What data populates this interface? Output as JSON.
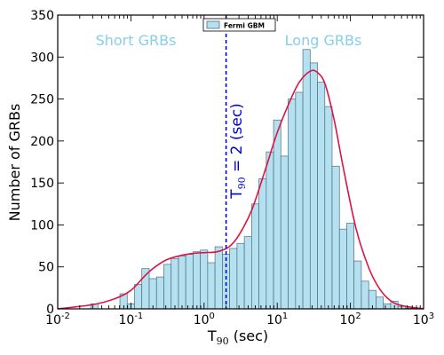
{
  "chart_data": {
    "type": "bar",
    "xscale": "log",
    "xlim": [
      0.01,
      1000
    ],
    "ylim": [
      0,
      350
    ],
    "xticks": [
      {
        "base": "10",
        "exp": "-2"
      },
      {
        "base": "10",
        "exp": "-1"
      },
      {
        "base": "10",
        "exp": "0"
      },
      {
        "base": "10",
        "exp": "1"
      },
      {
        "base": "10",
        "exp": "2"
      },
      {
        "base": "10",
        "exp": "3"
      }
    ],
    "yticks": [
      "0",
      "50",
      "100",
      "150",
      "200",
      "250",
      "300",
      "350"
    ],
    "ytick_values": [
      0,
      50,
      100,
      150,
      200,
      250,
      300,
      350
    ],
    "xlabel_main": "T",
    "xlabel_sub": "90",
    "xlabel_rest": " (sec)",
    "ylabel": "Number of GRBs",
    "legend": {
      "label": "Fermi GBM",
      "placement": "top-center"
    },
    "annotations": {
      "short": "Short GRBs",
      "long": "Long GRBs"
    },
    "threshold": {
      "x": 2,
      "main": "T",
      "sub": "90",
      "rest": " = 2 (sec)"
    },
    "bar_color": "#b4e0f0",
    "bar_edge": "#4a6f80",
    "curve_color": "#dc1444",
    "threshold_color": "#0000cc",
    "annotation_color": "#87ceeb",
    "series": [
      {
        "name": "Fermi GBM",
        "bins": [
          [
            0.0282,
            0.0355,
            6
          ],
          [
            0.0708,
            0.0891,
            18
          ],
          [
            0.0891,
            0.112,
            6
          ],
          [
            0.112,
            0.141,
            29
          ],
          [
            0.141,
            0.178,
            48
          ],
          [
            0.178,
            0.224,
            36
          ],
          [
            0.224,
            0.282,
            38
          ],
          [
            0.282,
            0.355,
            53
          ],
          [
            0.355,
            0.447,
            60
          ],
          [
            0.447,
            0.562,
            63
          ],
          [
            0.562,
            0.708,
            65
          ],
          [
            0.708,
            0.891,
            68
          ],
          [
            0.891,
            1.12,
            70
          ],
          [
            1.12,
            1.41,
            55
          ],
          [
            1.41,
            1.78,
            74
          ],
          [
            1.78,
            2.24,
            65
          ],
          [
            2.24,
            2.82,
            72
          ],
          [
            2.82,
            3.55,
            78
          ],
          [
            3.55,
            4.47,
            86
          ],
          [
            4.47,
            5.62,
            125
          ],
          [
            5.62,
            7.08,
            155
          ],
          [
            7.08,
            8.91,
            187
          ],
          [
            8.91,
            11.2,
            225
          ],
          [
            11.2,
            14.1,
            182
          ],
          [
            14.1,
            17.8,
            250
          ],
          [
            17.8,
            22.4,
            258
          ],
          [
            22.4,
            28.2,
            309
          ],
          [
            28.2,
            35.5,
            293
          ],
          [
            35.5,
            44.7,
            270
          ],
          [
            44.7,
            56.2,
            241
          ],
          [
            56.2,
            70.8,
            170
          ],
          [
            70.8,
            89.1,
            95
          ],
          [
            89.1,
            112,
            102
          ],
          [
            112,
            141,
            57
          ],
          [
            141,
            178,
            33
          ],
          [
            178,
            224,
            22
          ],
          [
            224,
            282,
            14
          ],
          [
            282,
            355,
            6
          ],
          [
            355,
            447,
            9
          ],
          [
            447,
            562,
            3
          ],
          [
            562,
            708,
            1
          ],
          [
            708,
            891,
            1
          ]
        ]
      }
    ],
    "fit_curve": [
      [
        0.01,
        0
      ],
      [
        0.03,
        5
      ],
      [
        0.06,
        12
      ],
      [
        0.1,
        22
      ],
      [
        0.15,
        38
      ],
      [
        0.2,
        48
      ],
      [
        0.3,
        58
      ],
      [
        0.45,
        63
      ],
      [
        0.7,
        66
      ],
      [
        1.0,
        67
      ],
      [
        1.5,
        68
      ],
      [
        2.2,
        74
      ],
      [
        3.0,
        88
      ],
      [
        4.5,
        118
      ],
      [
        7.0,
        168
      ],
      [
        10,
        210
      ],
      [
        15,
        248
      ],
      [
        20,
        270
      ],
      [
        28,
        283
      ],
      [
        35,
        282
      ],
      [
        45,
        268
      ],
      [
        60,
        225
      ],
      [
        80,
        168
      ],
      [
        120,
        95
      ],
      [
        180,
        48
      ],
      [
        250,
        24
      ],
      [
        350,
        10
      ],
      [
        500,
        4
      ],
      [
        1000,
        0
      ]
    ]
  }
}
